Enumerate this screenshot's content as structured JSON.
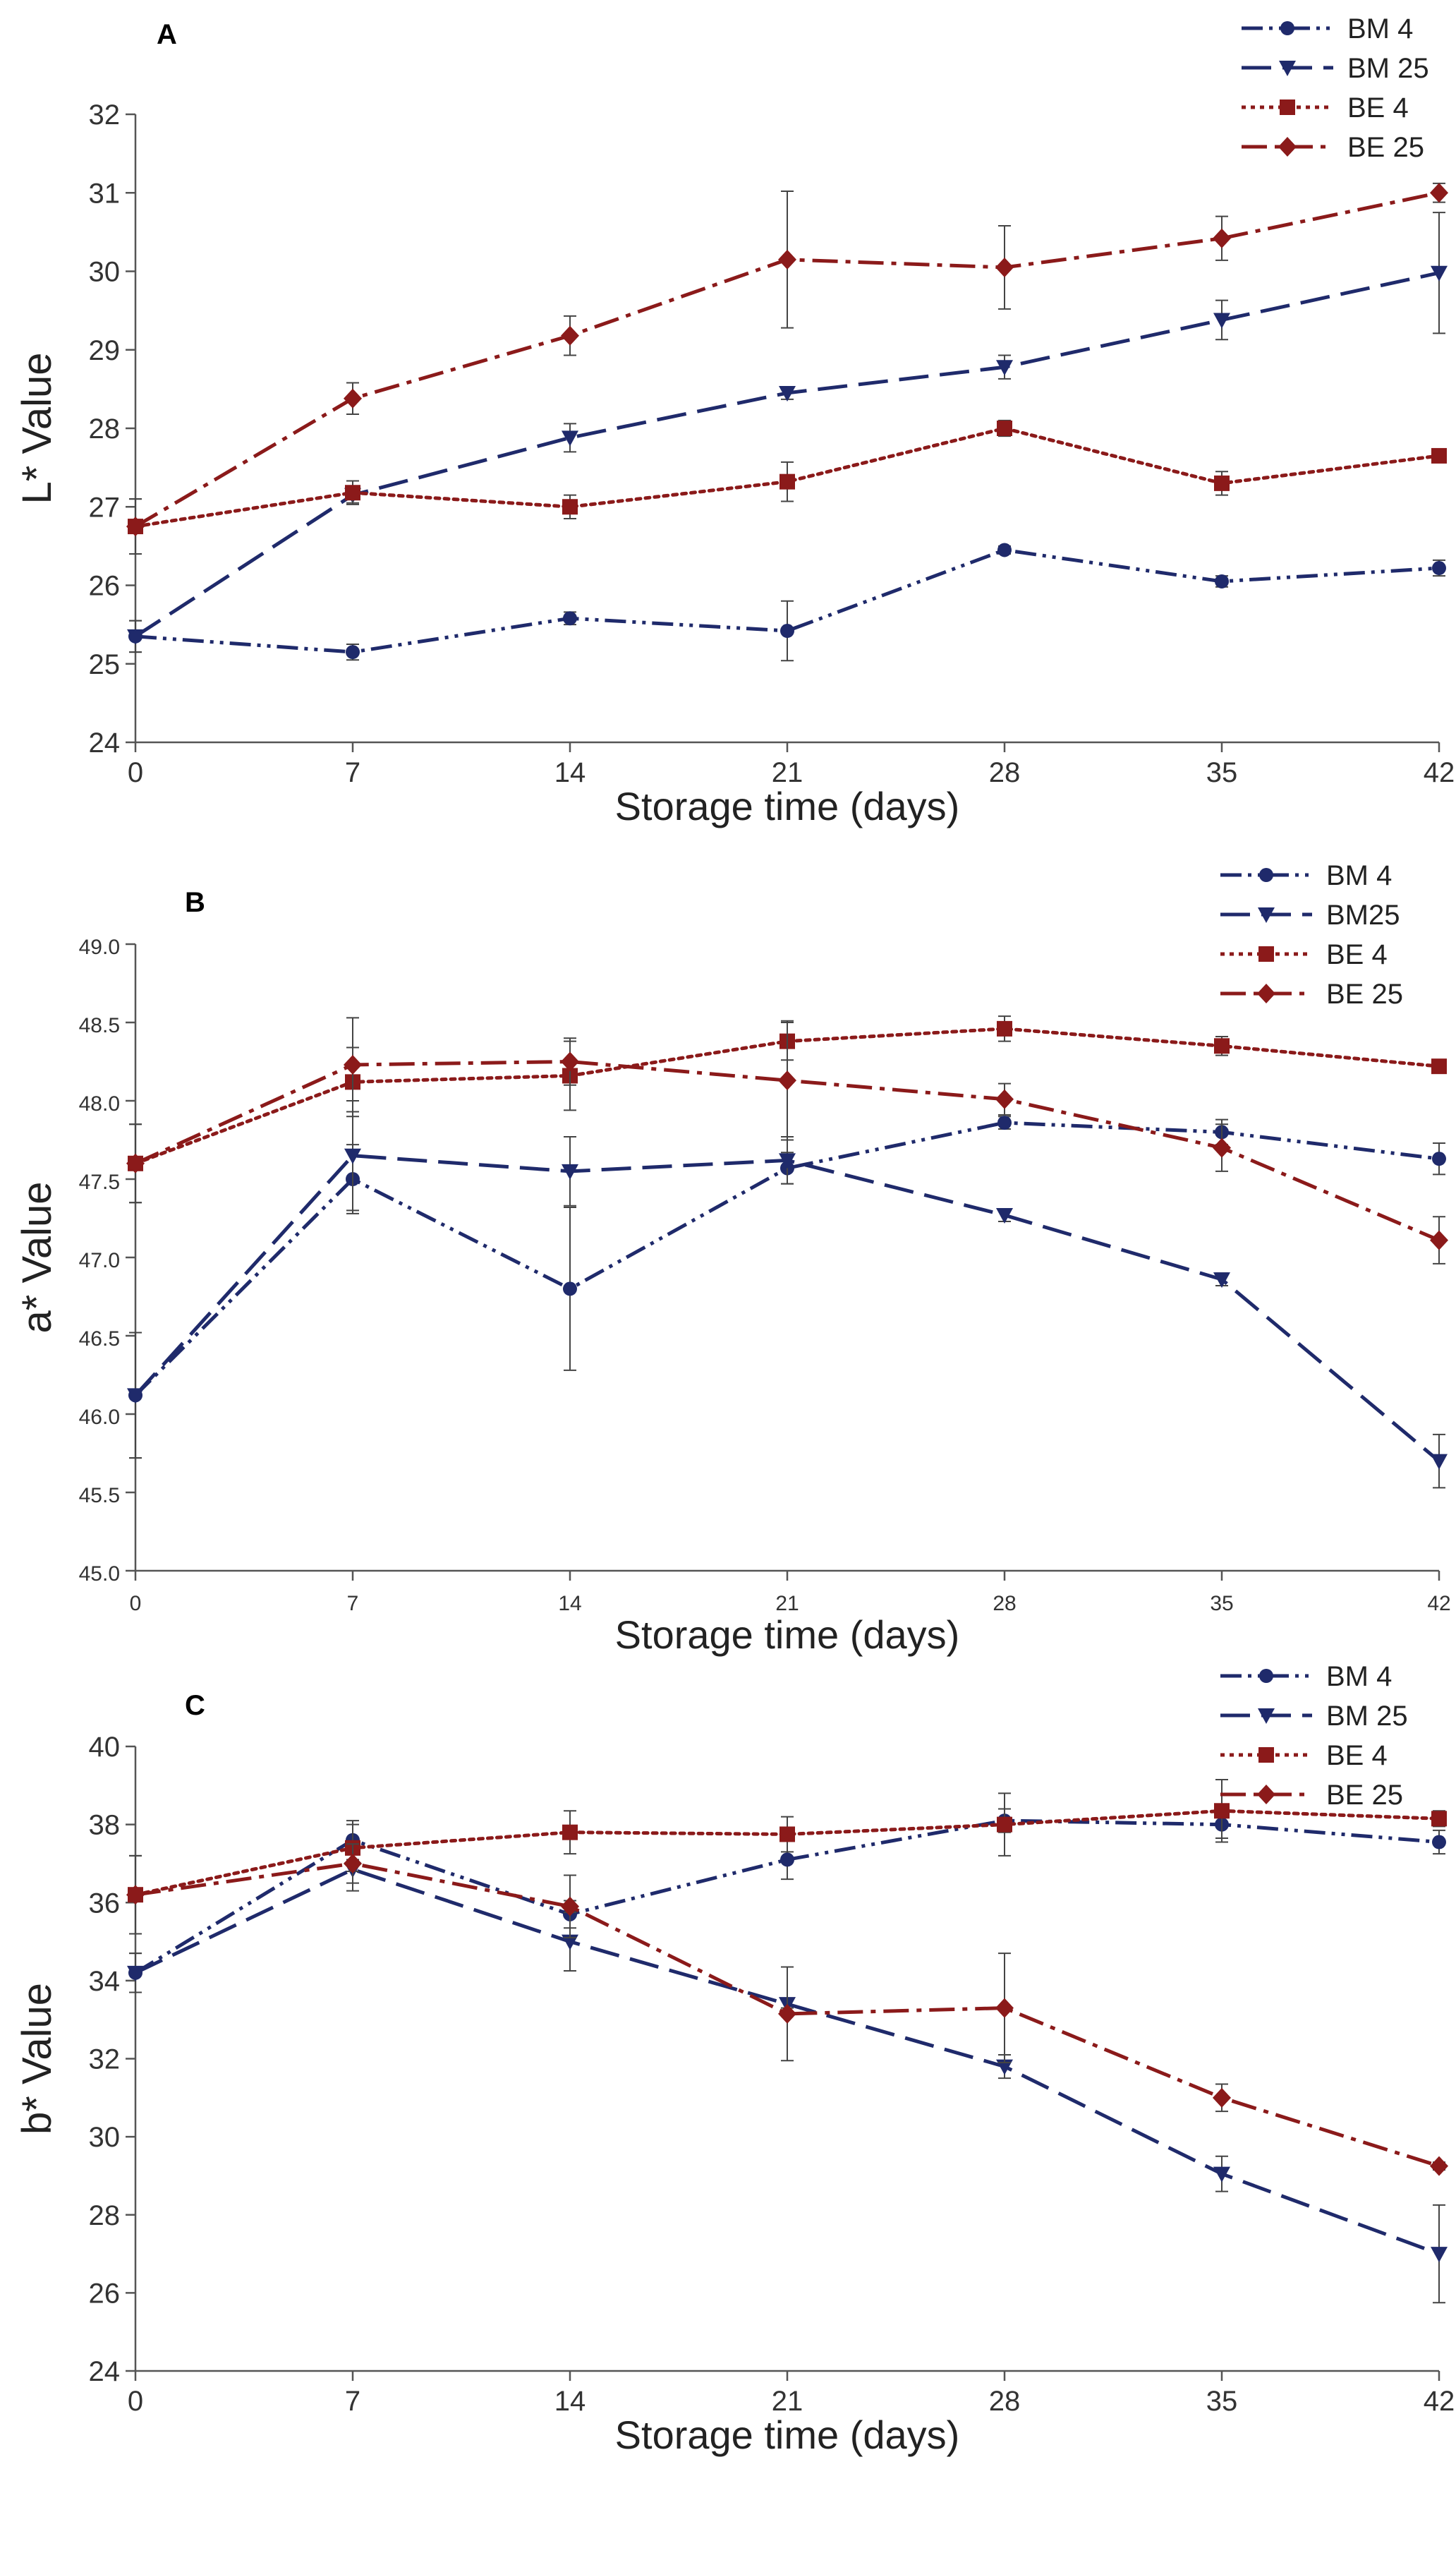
{
  "figure": {
    "description_visible": false
  },
  "colors": {
    "navy": "#1f2a6b",
    "maroon": "#8b1a1a"
  },
  "chart_data": [
    {
      "type": "line",
      "panel_label": "A",
      "xlabel": "Storage time (days)",
      "ylabel": "L* Value",
      "x": [
        0,
        7,
        14,
        21,
        28,
        35,
        42
      ],
      "xticks": [
        "0",
        "7",
        "14",
        "21",
        "28",
        "35",
        "42"
      ],
      "yticks": [
        "24",
        "25",
        "26",
        "27",
        "28",
        "29",
        "30",
        "31",
        "32"
      ],
      "ylim": [
        24,
        32
      ],
      "grid": false,
      "legend_position": "top-right",
      "series": [
        {
          "name": "BM 4",
          "color": "#1f2a6b",
          "marker": "circle",
          "dash": "dashdotdot",
          "values": [
            25.35,
            25.15,
            25.58,
            25.42,
            26.45,
            26.05,
            26.22
          ],
          "errors": [
            0.2,
            0.1,
            0.08,
            0.38,
            0.05,
            0.07,
            0.1
          ]
        },
        {
          "name": "BM 25",
          "color": "#1f2a6b",
          "marker": "triangle-down",
          "dash": "longdash",
          "values": [
            25.35,
            27.15,
            27.88,
            28.45,
            28.78,
            29.38,
            29.98
          ],
          "errors": [
            0.2,
            0.1,
            0.18,
            0.08,
            0.15,
            0.25,
            0.77
          ]
        },
        {
          "name": "BE 4",
          "color": "#8b1a1a",
          "marker": "square",
          "dash": "dotted",
          "values": [
            26.75,
            27.18,
            27.0,
            27.32,
            28.0,
            27.3,
            27.65
          ],
          "errors": [
            0.35,
            0.15,
            0.15,
            0.25,
            0.1,
            0.15,
            0.05
          ]
        },
        {
          "name": "BE 25",
          "color": "#8b1a1a",
          "marker": "diamond",
          "dash": "longdashdot",
          "values": [
            26.75,
            28.38,
            29.18,
            30.15,
            30.05,
            30.42,
            31.0
          ],
          "errors": [
            0.35,
            0.2,
            0.25,
            0.87,
            0.53,
            0.28,
            0.12
          ]
        }
      ]
    },
    {
      "type": "line",
      "panel_label": "B",
      "xlabel": "Storage time (days)",
      "ylabel": "a* Value",
      "x": [
        0,
        7,
        14,
        21,
        28,
        35,
        42
      ],
      "xticks": [
        "0",
        "7",
        "14",
        "21",
        "28",
        "35",
        "42"
      ],
      "yticks": [
        "45.0",
        "45.5",
        "46.0",
        "46.5",
        "47.0",
        "47.5",
        "48.0",
        "48.5",
        "49.0"
      ],
      "ylim": [
        45,
        49
      ],
      "grid": false,
      "legend_position": "top-right",
      "series": [
        {
          "name": "BM 4",
          "color": "#1f2a6b",
          "marker": "circle",
          "dash": "dashdotdot",
          "values": [
            46.12,
            47.5,
            46.8,
            47.57,
            47.86,
            47.8,
            47.63
          ],
          "errors": [
            0.4,
            0.22,
            0.52,
            0.1,
            0.04,
            0.08,
            0.1
          ]
        },
        {
          "name": "BM25",
          "color": "#1f2a6b",
          "marker": "triangle-down",
          "dash": "longdash",
          "values": [
            46.12,
            47.65,
            47.55,
            47.62,
            47.27,
            46.86,
            45.7
          ],
          "errors": [
            0.4,
            0.35,
            0.22,
            0.15,
            0.04,
            0.04,
            0.17
          ]
        },
        {
          "name": "BE 4",
          "color": "#8b1a1a",
          "marker": "square",
          "dash": "dotted",
          "values": [
            47.6,
            48.12,
            48.16,
            48.38,
            48.46,
            48.35,
            48.22
          ],
          "errors": [
            0.25,
            0.22,
            0.22,
            0.12,
            0.08,
            0.06,
            0.04
          ]
        },
        {
          "name": "BE 25",
          "color": "#8b1a1a",
          "marker": "diamond",
          "dash": "longdashdot",
          "values": [
            47.6,
            48.23,
            48.25,
            48.13,
            48.01,
            47.7,
            47.11
          ],
          "errors": [
            0.25,
            0.3,
            0.15,
            0.38,
            0.1,
            0.15,
            0.15
          ]
        }
      ]
    },
    {
      "type": "line",
      "panel_label": "C",
      "xlabel": "Storage time (days)",
      "ylabel": "b* Value",
      "x": [
        0,
        7,
        14,
        21,
        28,
        35,
        42
      ],
      "xticks": [
        "0",
        "7",
        "14",
        "21",
        "28",
        "35",
        "42"
      ],
      "yticks": [
        "24",
        "26",
        "28",
        "30",
        "32",
        "34",
        "36",
        "38",
        "40"
      ],
      "ylim": [
        24,
        40
      ],
      "grid": false,
      "legend_position": "top-right",
      "series": [
        {
          "name": "BM 4",
          "color": "#1f2a6b",
          "marker": "circle",
          "dash": "dashdotdot",
          "values": [
            34.2,
            37.6,
            35.7,
            37.1,
            38.1,
            38.0,
            37.55
          ],
          "errors": [
            0.5,
            0.5,
            0.35,
            0.5,
            0.3,
            0.35,
            0.3
          ]
        },
        {
          "name": "BM 25",
          "color": "#1f2a6b",
          "marker": "triangle-down",
          "dash": "longdash",
          "values": [
            34.2,
            36.85,
            35.0,
            33.4,
            31.8,
            29.05,
            27.0
          ],
          "errors": [
            0.5,
            0.55,
            0.75,
            0.1,
            0.3,
            0.45,
            1.25
          ]
        },
        {
          "name": "BE 4",
          "color": "#8b1a1a",
          "marker": "square",
          "dash": "dotted",
          "values": [
            36.2,
            37.4,
            37.8,
            37.75,
            38.0,
            38.35,
            38.15
          ],
          "errors": [
            1.0,
            0.6,
            0.55,
            0.45,
            0.8,
            0.8,
            0.2
          ]
        },
        {
          "name": "BE 25",
          "color": "#8b1a1a",
          "marker": "diamond",
          "dash": "longdashdot",
          "values": [
            36.2,
            37.0,
            35.9,
            33.15,
            33.3,
            31.0,
            29.25
          ],
          "errors": [
            1.0,
            0.5,
            0.8,
            1.2,
            1.4,
            0.35,
            0.1
          ]
        }
      ]
    }
  ]
}
